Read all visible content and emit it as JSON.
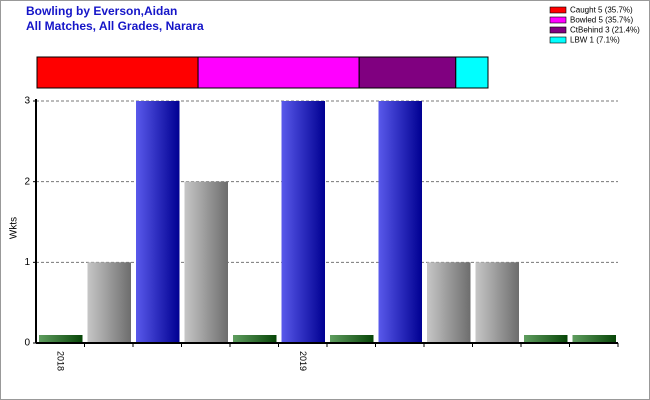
{
  "chart_data": [
    {
      "type": "stacked-bar",
      "title": "Bowling by Everson,Aidan",
      "subtitle": "All Matches, All Grades, Narara",
      "series": [
        {
          "name": "Caught 5 (35.7%)",
          "color": "#ff0000",
          "values": [
            5
          ]
        },
        {
          "name": "Bowled 5 (35.7%)",
          "color": "#ff00ff",
          "values": [
            5
          ]
        },
        {
          "name": "CtBehind 3 (21.4%)",
          "color": "#800080",
          "values": [
            3
          ]
        },
        {
          "name": "LBW 1 (7.1%)",
          "color": "#00ffff",
          "values": [
            1
          ]
        }
      ]
    },
    {
      "type": "bar",
      "y_label": "Wkts",
      "categories": [
        "2018",
        null,
        null,
        null,
        null,
        "2019",
        null,
        null,
        null,
        null,
        null,
        null
      ],
      "values": [
        0,
        1,
        3,
        2,
        0,
        3,
        0,
        3,
        1,
        1,
        0,
        0
      ],
      "colors": [
        "#0a6a0a",
        "#a8a8a8",
        "#0000e0",
        "#a8a8a8",
        "#0a6a0a",
        "#0000e0",
        "#0a6a0a",
        "#0000e0",
        "#a8a8a8",
        "#a8a8a8",
        "#0a6a0a",
        "#0a6a0a"
      ],
      "ylim": [
        0,
        3
      ],
      "yticks": [
        0,
        1,
        2,
        3
      ],
      "grid": true
    }
  ]
}
